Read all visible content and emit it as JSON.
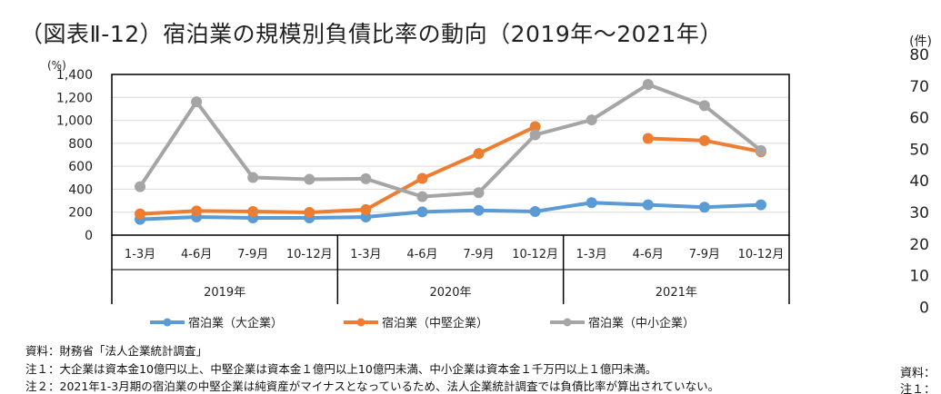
{
  "title": "（図表Ⅱ-12）宿泊業の規模別負債比率の動向（2019年～2021年）",
  "chart_data": {
    "type": "line",
    "title": "（図表Ⅱ-12）宿泊業の規模別負債比率の動向（2019年～2021年）",
    "ylabel": "(%)",
    "ylim": [
      0,
      1400
    ],
    "yticks": [
      "0",
      "200",
      "400",
      "600",
      "800",
      "1,000",
      "1,200",
      "1,400"
    ],
    "grid": true,
    "legend": "bottom",
    "categories": [
      "1-3月",
      "4-6月",
      "7-9月",
      "10-12月",
      "1-3月",
      "4-6月",
      "7-9月",
      "10-12月",
      "1-3月",
      "4-6月",
      "7-9月",
      "10-12月"
    ],
    "years": [
      "2019年",
      "2020年",
      "2021年"
    ],
    "series": [
      {
        "name": "宿泊業（大企業）",
        "color": "#5B9BD5",
        "values": [
          137,
          158,
          150,
          150,
          158,
          203,
          216,
          206,
          283,
          264,
          243,
          264
        ]
      },
      {
        "name": "宿泊業（中堅企業）",
        "color": "#ED7D31",
        "values": [
          185,
          211,
          206,
          198,
          222,
          494,
          711,
          945,
          null,
          842,
          824,
          727
        ]
      },
      {
        "name": "宿泊業（中小企業）",
        "color": "#A5A5A5",
        "values": [
          422,
          1162,
          502,
          486,
          491,
          335,
          370,
          874,
          1004,
          1313,
          1128,
          737
        ]
      }
    ]
  },
  "right_axis": {
    "unit": "(件)",
    "ticks": [
      "80",
      "70",
      "60",
      "50",
      "40",
      "30",
      "20",
      "10",
      "0"
    ]
  },
  "notes": [
    "資料：財務省「法人企業統計調査」",
    "注１：大企業は資本金10億円以上、中堅企業は資本金１億円以上10億円未満、中小企業は資本金１千万円以上１億円未満。",
    "注２：2021年1-3月期の宿泊業の中堅企業は純資産がマイナスとなっているため、法人企業統計調査では負債比率が算出されていない。"
  ],
  "right_notes": [
    "資料：",
    "注１："
  ]
}
